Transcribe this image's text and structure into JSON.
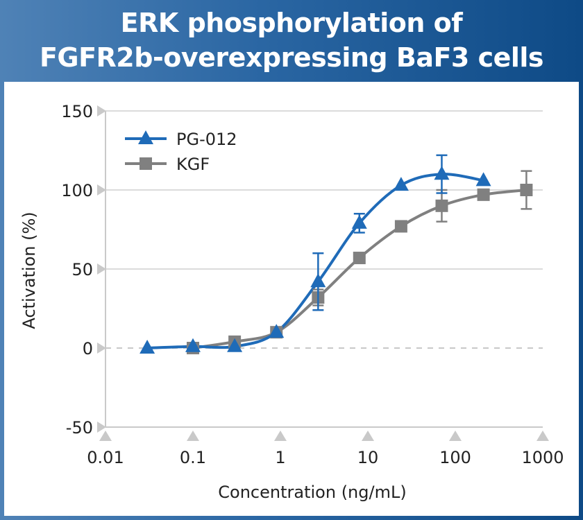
{
  "title": {
    "line1": "ERK phosphorylation of",
    "line2": "FGFR2b-overexpressing BaF3 cells"
  },
  "chart_data": {
    "type": "line",
    "title": "ERK phosphorylation of FGFR2b-overexpressing BaF3 cells",
    "xlabel": "Concentration (ng/mL)",
    "ylabel": "Activation (%)",
    "xscale": "log",
    "xlim": [
      0.01,
      1000
    ],
    "ylim": [
      -50,
      150
    ],
    "x_ticks": [
      "0.01",
      "0.1",
      "1",
      "10",
      "100",
      "1000"
    ],
    "y_ticks": [
      "150",
      "100",
      "50",
      "0",
      "-50"
    ],
    "grid": "horizontal",
    "legend": "top-left",
    "series": [
      {
        "name": "PG-012",
        "color": "#1f6bb8",
        "marker": "triangle",
        "x": [
          0.03,
          0.1,
          0.3,
          0.9,
          2.7,
          8,
          24,
          70,
          210
        ],
        "y": [
          0,
          1,
          1,
          10,
          42,
          79,
          103,
          110,
          106
        ],
        "err": [
          0,
          0,
          0,
          0,
          18,
          6,
          0,
          12,
          0
        ]
      },
      {
        "name": "KGF",
        "color": "#808080",
        "marker": "square",
        "x": [
          0.1,
          0.3,
          0.9,
          2.7,
          8,
          24,
          70,
          210,
          650
        ],
        "y": [
          0,
          4,
          10,
          32,
          57,
          77,
          90,
          97,
          100
        ],
        "err": [
          0,
          0,
          0,
          5,
          0,
          0,
          10,
          0,
          12
        ]
      }
    ]
  }
}
